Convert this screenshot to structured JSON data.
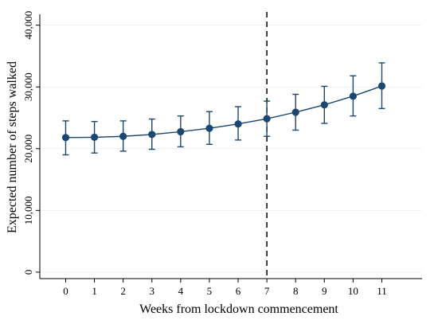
{
  "chart_data": {
    "type": "line",
    "title": "",
    "xlabel": "Weeks from lockdown commencement",
    "ylabel": "Expected number of steps walked",
    "x_ticks": [
      "0",
      "1",
      "2",
      "3",
      "4",
      "5",
      "6",
      "7",
      "8",
      "9",
      "10",
      "11"
    ],
    "y_ticks": [
      "0",
      "10,000",
      "20,000",
      "30,000",
      "40,000"
    ],
    "xlim": [
      -0.9,
      12.4
    ],
    "ylim": [
      -400,
      41500
    ],
    "grid": "horizontal",
    "vline": {
      "x": 7,
      "style": "dashed"
    },
    "series": [
      {
        "x": [
          0,
          1,
          2,
          3,
          4,
          5,
          6,
          7,
          8,
          9,
          10,
          11
        ],
        "values": [
          21800,
          21850,
          22000,
          22300,
          22750,
          23300,
          24000,
          24850,
          25900,
          27100,
          28500,
          30150
        ],
        "ci_low": [
          19000,
          19300,
          19600,
          19900,
          20300,
          20700,
          21400,
          22000,
          23000,
          24100,
          25300,
          26500
        ],
        "ci_high": [
          24500,
          24400,
          24500,
          24800,
          25300,
          26000,
          26800,
          27700,
          28800,
          30100,
          31800,
          33900
        ]
      }
    ],
    "colors": {
      "series": "#1a476f",
      "grid": "#eaf2f3",
      "axis": "#000000"
    }
  }
}
